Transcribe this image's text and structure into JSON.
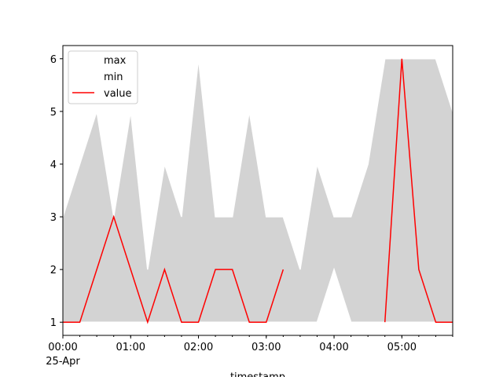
{
  "chart_data": {
    "type": "line",
    "x": [
      "00:00",
      "00:15",
      "00:30",
      "00:45",
      "01:00",
      "01:15",
      "01:30",
      "01:45",
      "02:00",
      "02:15",
      "02:30",
      "02:45",
      "03:00",
      "03:15",
      "03:30",
      "03:45",
      "04:00",
      "04:15",
      "04:30",
      "04:45",
      "05:00",
      "05:15",
      "05:30",
      "05:45"
    ],
    "x_date_label": "25-Apr",
    "xticks": [
      "00:00",
      "01:00",
      "02:00",
      "03:00",
      "04:00",
      "05:00"
    ],
    "xlabel": "timestamp",
    "fill_between": [
      "max",
      "min"
    ],
    "fill_color": "#d3d3d3",
    "series": [
      {
        "name": "max",
        "color": "#ffffff",
        "values": [
          3,
          4,
          5,
          3,
          5,
          2,
          4,
          3,
          6,
          3,
          3,
          5,
          3,
          3,
          2,
          4,
          3,
          3,
          4,
          6,
          6,
          6,
          6,
          5
        ]
      },
      {
        "name": "min",
        "color": "#ffffff",
        "values": [
          1,
          1,
          1,
          1,
          1,
          1,
          1,
          1,
          1,
          1,
          1,
          1,
          1,
          1,
          1,
          1,
          2,
          1,
          1,
          1,
          1,
          1,
          1,
          1
        ]
      },
      {
        "name": "value",
        "color": "#ff0000",
        "values": [
          1,
          1,
          2,
          3,
          2,
          1,
          2,
          1,
          1,
          2,
          2,
          1,
          1,
          2,
          null,
          null,
          null,
          null,
          null,
          1,
          6,
          2,
          1,
          1
        ]
      }
    ],
    "ylim": [
      0.75,
      6.25
    ],
    "yticks": [
      1,
      2,
      3,
      4,
      5,
      6
    ],
    "legend": "upper left"
  }
}
